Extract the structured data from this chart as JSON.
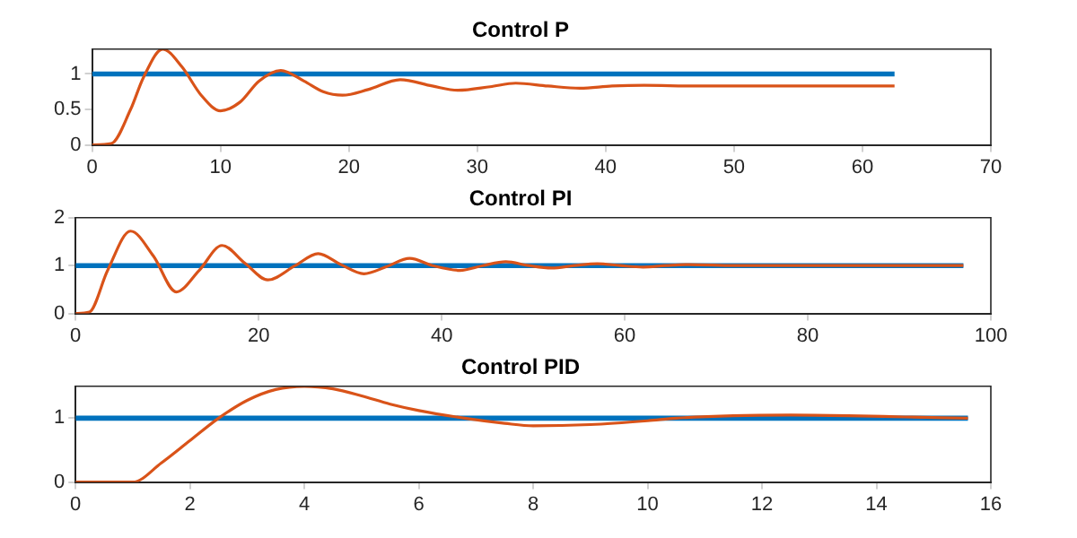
{
  "chart_data": [
    {
      "type": "line",
      "title": "Control P",
      "xlim": [
        0,
        70
      ],
      "xticks": [
        0,
        10,
        20,
        30,
        40,
        50,
        60,
        70
      ],
      "ylim": [
        0,
        1.35
      ],
      "yticks": [
        0,
        0.5,
        1
      ],
      "grid": false,
      "legend": false,
      "marker": "none",
      "line_style": "solid",
      "series": [
        {
          "color": "#0072bd",
          "x": [
            0,
            62.5
          ],
          "values": [
            1,
            1
          ]
        },
        {
          "color": "#d95319",
          "x": [
            0,
            1.5,
            3,
            4,
            5.5,
            7,
            8.5,
            10,
            11.5,
            13,
            14.7,
            16.5,
            18,
            19.5,
            21.5,
            24,
            26.5,
            28.5,
            31,
            33,
            35.5,
            38,
            40.5,
            43,
            47,
            52,
            57,
            62.5
          ],
          "values": [
            0,
            0.02,
            0.5,
            0.95,
            1.35,
            1.1,
            0.7,
            0.48,
            0.6,
            0.9,
            1.05,
            0.9,
            0.75,
            0.7,
            0.78,
            0.92,
            0.83,
            0.77,
            0.82,
            0.87,
            0.83,
            0.8,
            0.83,
            0.84,
            0.83,
            0.83,
            0.83,
            0.83
          ]
        }
      ]
    },
    {
      "type": "line",
      "title": "Control PI",
      "xlim": [
        0,
        100
      ],
      "xticks": [
        0,
        20,
        40,
        60,
        80,
        100
      ],
      "ylim": [
        0,
        2
      ],
      "yticks": [
        0,
        1,
        2
      ],
      "grid": false,
      "legend": false,
      "marker": "none",
      "line_style": "solid",
      "series": [
        {
          "color": "#0072bd",
          "x": [
            0,
            97
          ],
          "values": [
            1,
            1
          ]
        },
        {
          "color": "#d95319",
          "x": [
            0,
            1.5,
            3.5,
            6,
            8.5,
            11,
            13.5,
            16,
            18.5,
            21,
            24,
            26.5,
            29,
            31.5,
            34,
            36.5,
            39,
            42,
            44.5,
            47,
            49.5,
            52,
            54.5,
            57,
            59.5,
            62,
            64.5,
            67,
            72,
            80,
            97
          ],
          "values": [
            0,
            0.03,
            0.9,
            1.72,
            1.2,
            0.45,
            0.9,
            1.42,
            1.05,
            0.7,
            1.0,
            1.25,
            1.02,
            0.83,
            0.98,
            1.15,
            1.0,
            0.9,
            1.0,
            1.08,
            1.0,
            0.95,
            1.0,
            1.04,
            1.0,
            0.97,
            1.0,
            1.02,
            1.0,
            1.0,
            1.0
          ]
        }
      ]
    },
    {
      "type": "line",
      "title": "Control PID",
      "xlim": [
        0,
        16
      ],
      "xticks": [
        0,
        2,
        4,
        6,
        8,
        10,
        12,
        14,
        16
      ],
      "ylim": [
        0,
        1.5
      ],
      "yticks": [
        0,
        1
      ],
      "grid": false,
      "legend": false,
      "marker": "none",
      "line_style": "solid",
      "series": [
        {
          "color": "#0072bd",
          "x": [
            0,
            15.6
          ],
          "values": [
            1,
            1
          ]
        },
        {
          "color": "#d95319",
          "x": [
            0,
            1,
            1.5,
            2,
            2.5,
            3,
            3.5,
            4,
            4.5,
            5,
            5.5,
            6,
            6.8,
            7.5,
            8,
            9,
            10,
            10.5,
            11.5,
            12.5,
            13.5,
            14.5,
            15.6
          ],
          "values": [
            0,
            0,
            0.3,
            0.65,
            1.0,
            1.28,
            1.45,
            1.5,
            1.46,
            1.35,
            1.22,
            1.12,
            1.0,
            0.92,
            0.88,
            0.9,
            0.96,
            1.0,
            1.04,
            1.05,
            1.04,
            1.02,
            1.0
          ]
        }
      ]
    }
  ]
}
